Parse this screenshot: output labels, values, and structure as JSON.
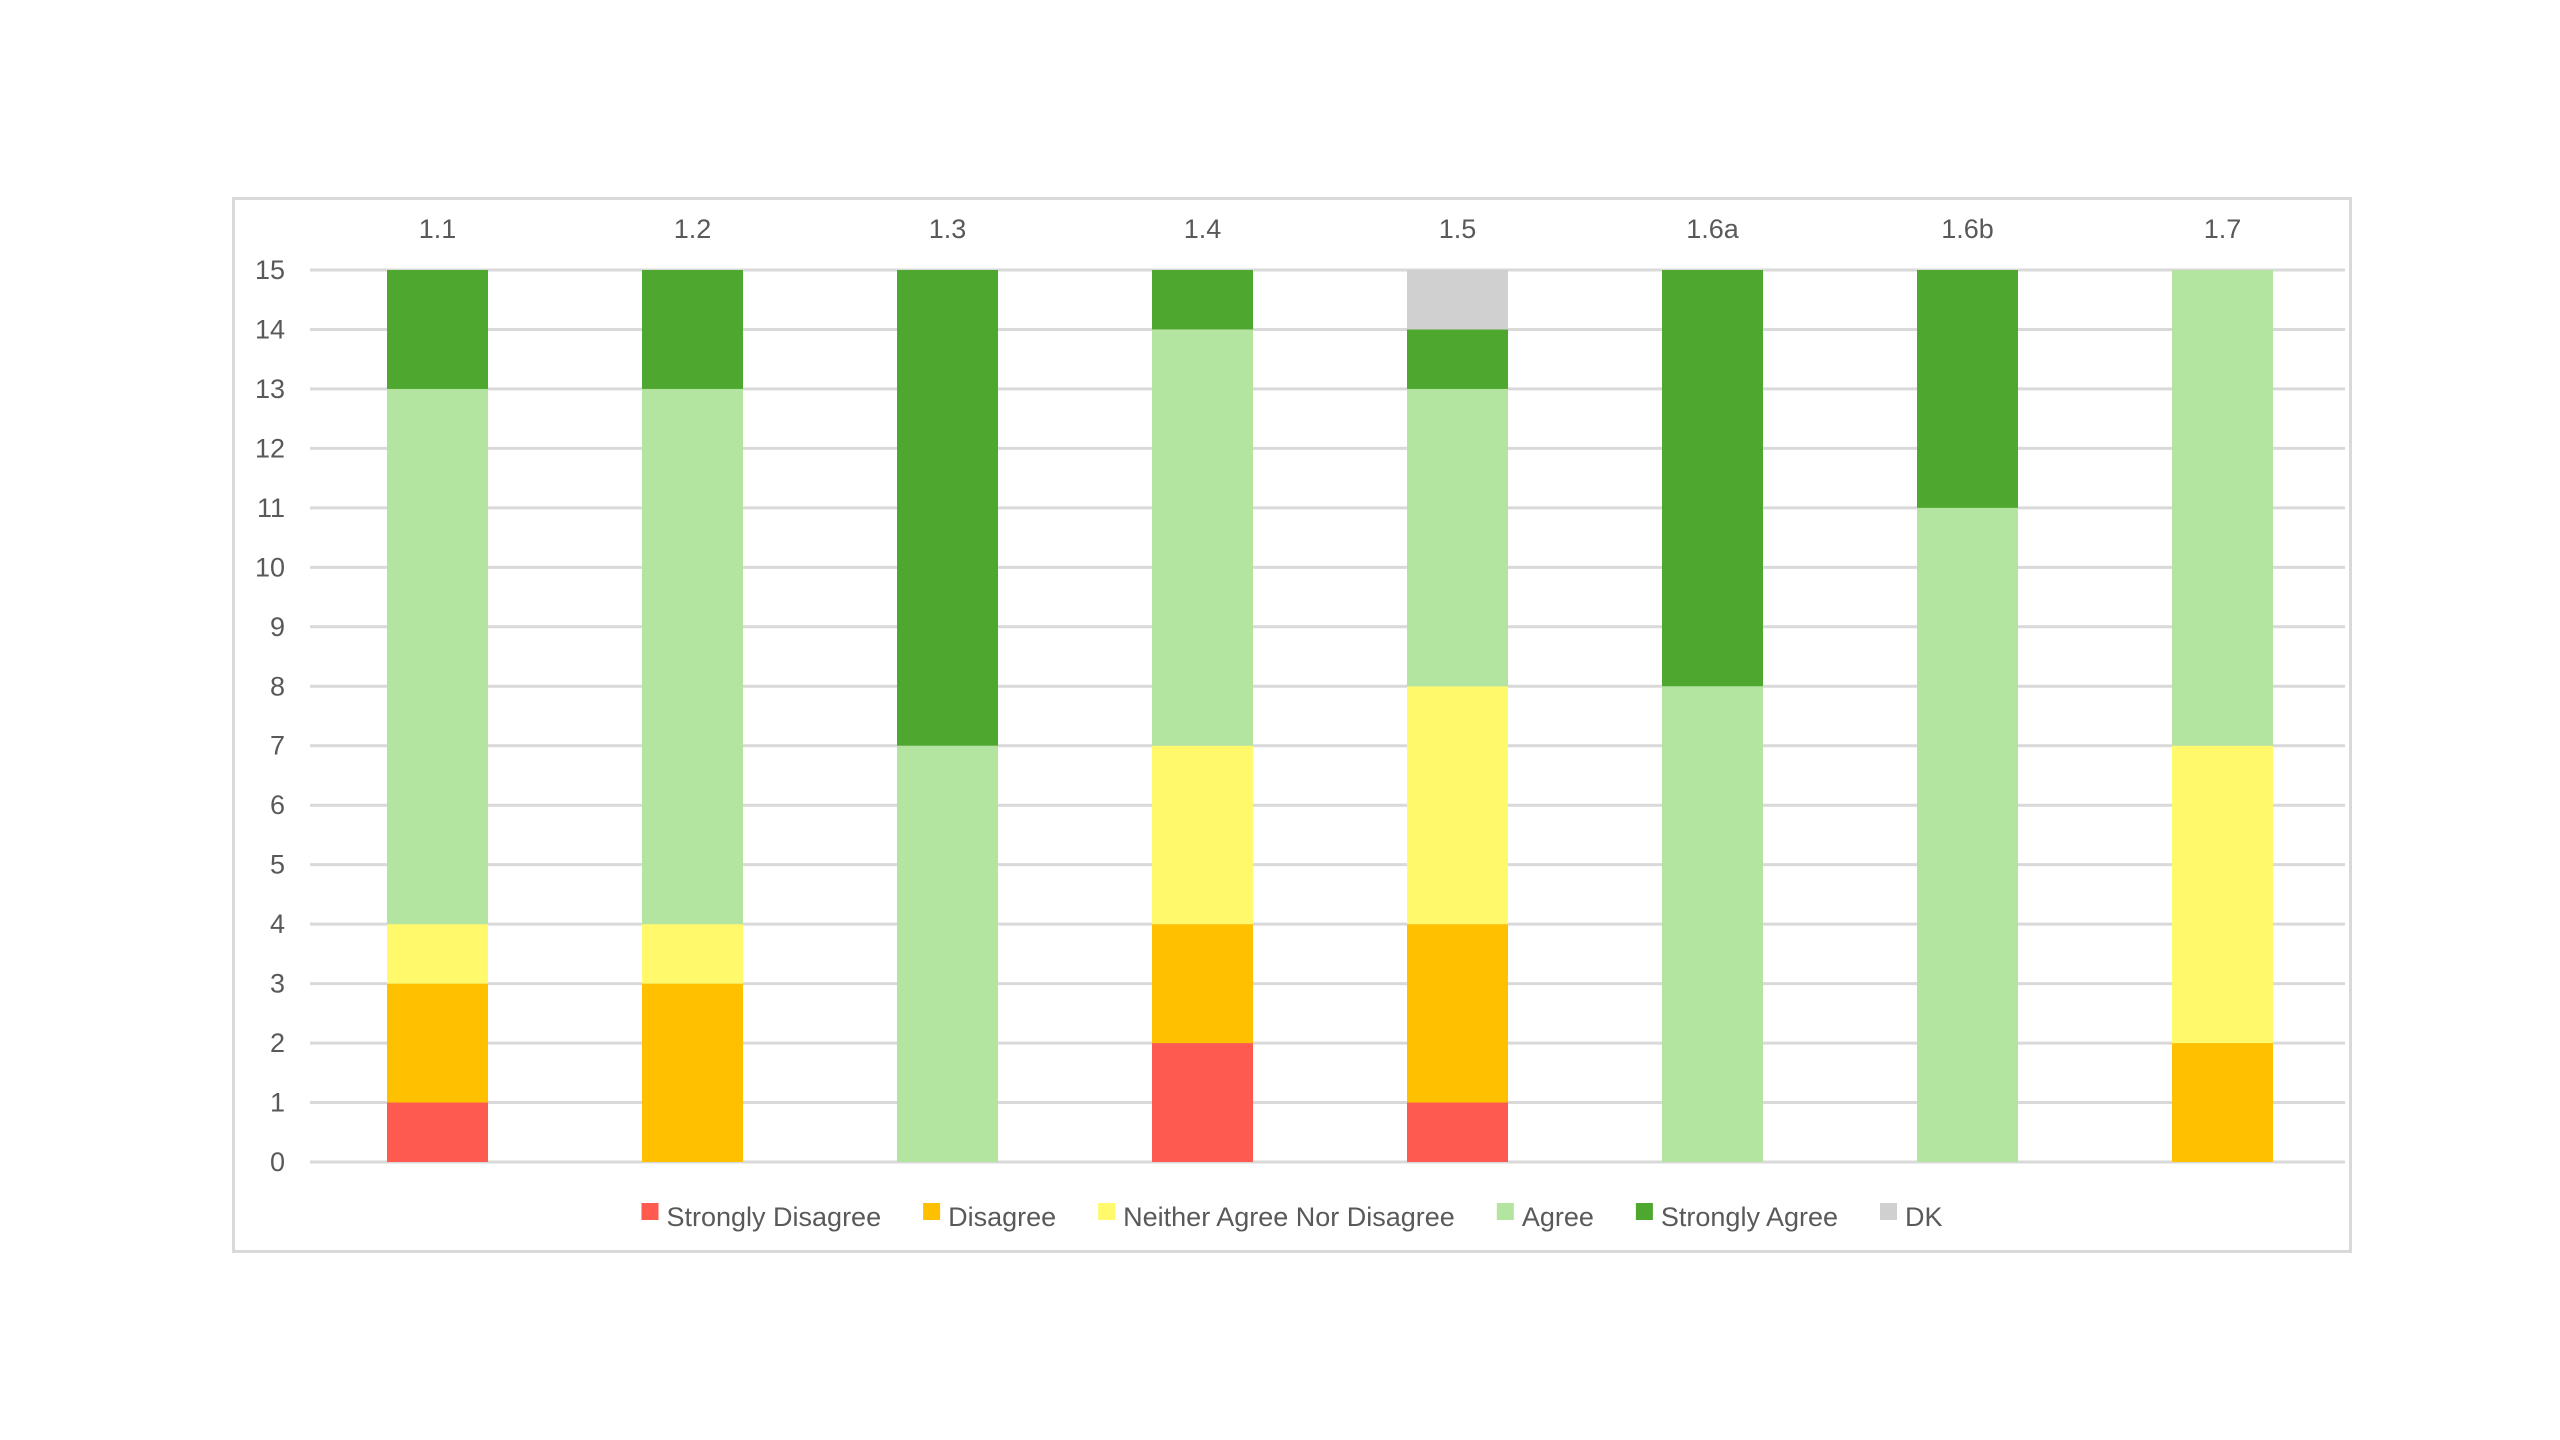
{
  "chart_data": {
    "type": "bar",
    "stacked": true,
    "title": "",
    "xlabel": "",
    "ylabel": "",
    "category_axis_position": "top",
    "categories": [
      "1.1",
      "1.2",
      "1.3",
      "1.4",
      "1.5",
      "1.6a",
      "1.6b",
      "1.7"
    ],
    "ylim": [
      0,
      15
    ],
    "yticks": [
      0,
      1,
      2,
      3,
      4,
      5,
      6,
      7,
      8,
      9,
      10,
      11,
      12,
      13,
      14,
      15
    ],
    "grid": true,
    "legend_position": "bottom",
    "series": [
      {
        "name": "Strongly Disagree",
        "color": "#ff5a4f",
        "values": [
          1,
          0,
          0,
          2,
          1,
          0,
          0,
          0
        ]
      },
      {
        "name": "Disagree",
        "color": "#ffc000",
        "values": [
          2,
          3,
          0,
          2,
          3,
          0,
          0,
          2
        ]
      },
      {
        "name": "Neither Agree Nor Disagree",
        "color": "#fff96b",
        "values": [
          1,
          1,
          0,
          3,
          4,
          0,
          0,
          5
        ]
      },
      {
        "name": "Agree",
        "color": "#b3e5a1",
        "values": [
          9,
          9,
          7,
          7,
          5,
          8,
          11,
          8
        ]
      },
      {
        "name": "Strongly Agree",
        "color": "#4ea72e",
        "values": [
          2,
          2,
          8,
          1,
          1,
          7,
          4,
          0
        ]
      },
      {
        "name": "DK",
        "color": "#d0d0d0",
        "values": [
          0,
          0,
          0,
          0,
          1,
          0,
          0,
          0
        ]
      }
    ]
  }
}
